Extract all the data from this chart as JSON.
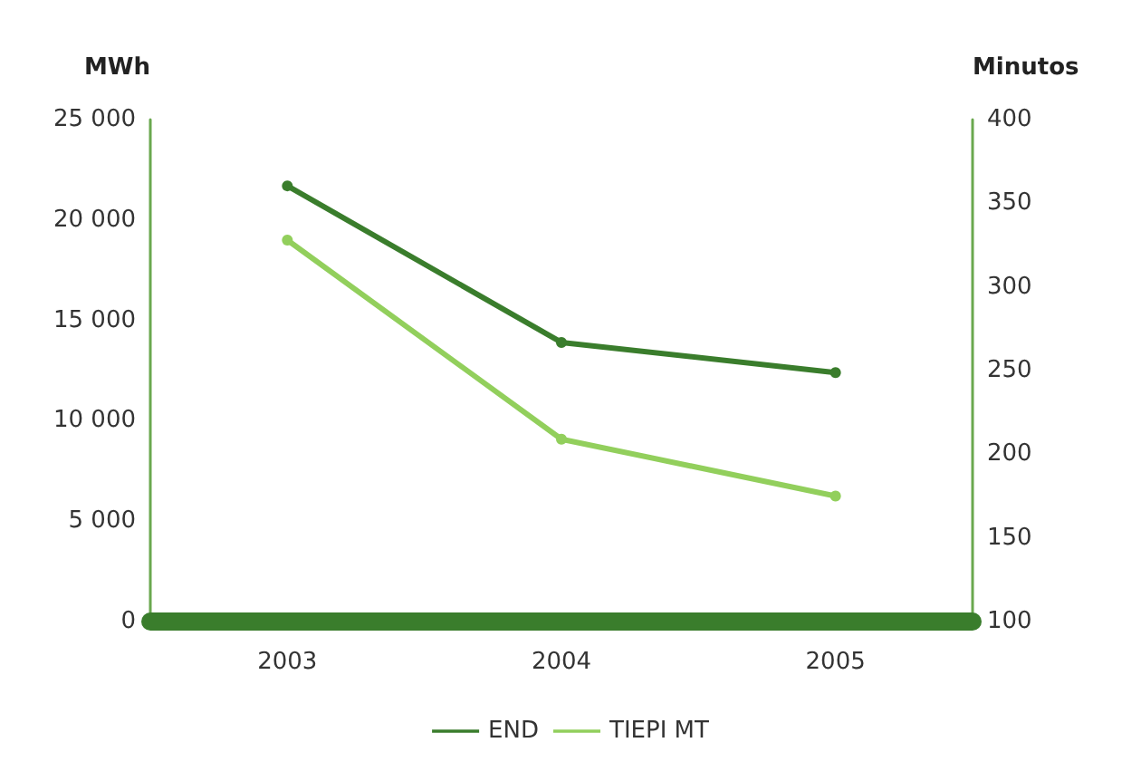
{
  "chart_data": {
    "type": "line",
    "ylabel": "MWh",
    "y2label": "Minutos",
    "categories": [
      "2003",
      "2004",
      "2005"
    ],
    "series": [
      {
        "name": "END",
        "color": "#3a7d2c",
        "values": [
          21700,
          13900,
          12400
        ]
      },
      {
        "name": "TIEPI MT",
        "color": "#92cf5c",
        "values": [
          328,
          209,
          175
        ],
        "axis": "y2"
      }
    ],
    "ylim": [
      0,
      25000
    ],
    "yticks": [
      {
        "value": 0,
        "label": "0"
      },
      {
        "value": 5000,
        "label": "5 000"
      },
      {
        "value": 10000,
        "label": "10 000"
      },
      {
        "value": 15000,
        "label": "15 000"
      },
      {
        "value": 20000,
        "label": "20 000"
      },
      {
        "value": 25000,
        "label": "25 000"
      }
    ],
    "y2lim": [
      100,
      400
    ],
    "y2ticks": [
      100,
      150,
      200,
      250,
      300,
      350,
      400
    ],
    "grid": false,
    "legend": "bottom",
    "marker": "circle",
    "line_style": "solid"
  }
}
